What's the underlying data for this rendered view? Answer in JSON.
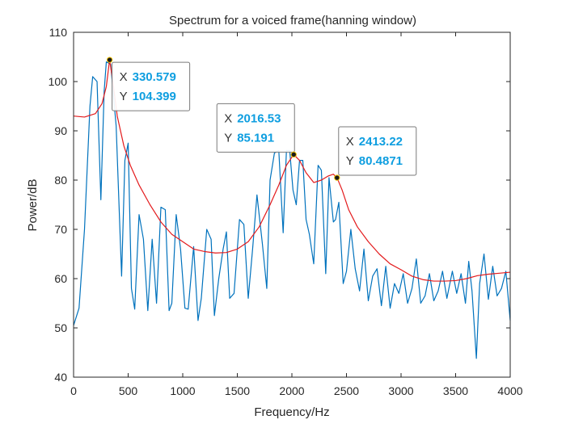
{
  "chart_data": {
    "type": "line",
    "title": "Spectrum for a voiced frame(hanning window)",
    "xlabel": "Frequency/Hz",
    "ylabel": "Power/dB",
    "xlim": [
      0,
      4000
    ],
    "ylim": [
      40,
      110
    ],
    "xticks": [
      0,
      500,
      1000,
      1500,
      2000,
      2500,
      3000,
      3500,
      4000
    ],
    "yticks": [
      40,
      50,
      60,
      70,
      80,
      90,
      100,
      110
    ],
    "grid": false,
    "box": true,
    "series": [
      {
        "color": "#0072bd",
        "style": "spectrum",
        "x": [
          0,
          50,
          100,
          150,
          175,
          215,
          250,
          280,
          300,
          340,
          390,
          440,
          470,
          500,
          530,
          560,
          600,
          640,
          680,
          720,
          760,
          800,
          840,
          875,
          900,
          940,
          980,
          1020,
          1050,
          1100,
          1140,
          1170,
          1220,
          1260,
          1290,
          1330,
          1370,
          1400,
          1430,
          1470,
          1520,
          1560,
          1600,
          1640,
          1680,
          1730,
          1770,
          1800,
          1840,
          1880,
          1920,
          1950,
          1980,
          2010,
          2040,
          2070,
          2100,
          2130,
          2160,
          2200,
          2240,
          2270,
          2310,
          2340,
          2380,
          2400,
          2430,
          2470,
          2500,
          2540,
          2580,
          2620,
          2660,
          2700,
          2740,
          2780,
          2820,
          2860,
          2900,
          2940,
          2980,
          3020,
          3060,
          3100,
          3140,
          3180,
          3220,
          3260,
          3300,
          3340,
          3380,
          3420,
          3470,
          3510,
          3550,
          3590,
          3620,
          3650,
          3690,
          3720,
          3760,
          3800,
          3840,
          3880,
          3920,
          3960,
          4000
        ],
        "values": [
          50.5,
          54,
          70,
          95,
          101,
          100,
          76,
          98,
          104,
          103.5,
          91,
          60.5,
          84,
          87.5,
          58,
          53.8,
          73,
          68,
          53.5,
          68,
          55,
          74.5,
          74,
          53.5,
          55,
          73,
          66,
          54,
          53.8,
          66.5,
          51.5,
          56,
          70,
          68,
          52.5,
          60,
          66,
          69.5,
          56,
          57,
          72,
          71,
          56,
          66,
          77,
          67,
          58,
          80,
          85.5,
          86,
          69.3,
          86,
          86,
          78,
          75,
          84,
          84,
          72,
          69,
          63,
          83,
          82,
          61,
          80.5,
          71.5,
          72,
          75.5,
          59,
          61.5,
          70,
          62,
          57.5,
          66,
          55.5,
          60.5,
          62,
          54.5,
          62.5,
          54,
          59,
          57,
          61,
          55,
          58,
          64,
          55,
          56.5,
          61,
          55.5,
          57.5,
          61.5,
          56,
          61.5,
          57,
          61,
          55,
          63.5,
          57.5,
          43.8,
          59,
          65,
          55.8,
          62.5,
          56.5,
          58,
          61.5,
          51.5
        ]
      },
      {
        "color": "#e31a1c",
        "style": "envelope",
        "x": [
          0,
          100,
          200,
          260,
          300,
          330,
          360,
          400,
          460,
          520,
          600,
          700,
          800,
          900,
          1000,
          1100,
          1200,
          1300,
          1400,
          1500,
          1600,
          1700,
          1800,
          1880,
          1950,
          2016,
          2070,
          2130,
          2200,
          2270,
          2330,
          2380,
          2413,
          2460,
          2520,
          2600,
          2700,
          2800,
          2900,
          3000,
          3100,
          3200,
          3300,
          3400,
          3500,
          3600,
          3700,
          3800,
          3900,
          4000
        ],
        "values": [
          93,
          92.8,
          93.5,
          95.5,
          99,
          104.4,
          100,
          93,
          87,
          83,
          79,
          75,
          71.5,
          69,
          67.5,
          66,
          65.5,
          65.2,
          65.3,
          66,
          67.5,
          70.5,
          75,
          79,
          83,
          85.2,
          84,
          81.5,
          79.5,
          80,
          80.8,
          81.2,
          80.5,
          78,
          74,
          70.5,
          67.5,
          65,
          63,
          61.8,
          60.5,
          59.8,
          59.5,
          59.5,
          59.6,
          60,
          60.6,
          60.9,
          61.1,
          61.3
        ]
      }
    ],
    "datatips": [
      {
        "x": 330.579,
        "y": 104.399,
        "x_text": "330.579",
        "y_text": "104.399"
      },
      {
        "x": 2016.53,
        "y": 85.191,
        "x_text": "2016.53",
        "y_text": "85.191"
      },
      {
        "x": 2413.22,
        "y": 80.4871,
        "x_text": "2413.22",
        "y_text": "80.4871"
      }
    ],
    "datatip_keys": {
      "x": "X",
      "y": "Y"
    }
  }
}
